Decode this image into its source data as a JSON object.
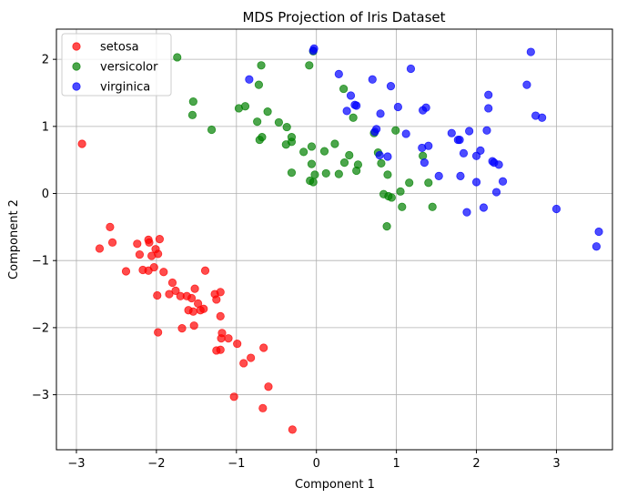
{
  "chart_data": {
    "type": "scatter",
    "title": "MDS Projection of Iris Dataset",
    "xlabel": "Component 1",
    "ylabel": "Component 2",
    "xlim": [
      -3.25,
      3.7
    ],
    "ylim": [
      -3.82,
      2.45
    ],
    "x_ticks": [
      -3,
      -2,
      -1,
      0,
      1,
      2,
      3
    ],
    "y_ticks": [
      -3,
      -2,
      -1,
      0,
      1,
      2
    ],
    "grid": true,
    "legend_position": "top-left",
    "series": [
      {
        "name": "setosa",
        "color": "#ff0000",
        "points": [
          [
            -2.93,
            0.74
          ],
          [
            -2.58,
            -0.5
          ],
          [
            -2.55,
            -0.73
          ],
          [
            -2.71,
            -0.82
          ],
          [
            -2.38,
            -1.16
          ],
          [
            -2.24,
            -0.75
          ],
          [
            -2.21,
            -0.91
          ],
          [
            -2.17,
            -1.14
          ],
          [
            -2.1,
            -0.69
          ],
          [
            -2.09,
            -0.73
          ],
          [
            -2.06,
            -0.93
          ],
          [
            -2.01,
            -0.83
          ],
          [
            -1.98,
            -0.9
          ],
          [
            -1.96,
            -0.68
          ],
          [
            -2.1,
            -1.15
          ],
          [
            -2.03,
            -1.1
          ],
          [
            -1.99,
            -1.52
          ],
          [
            -1.91,
            -1.17
          ],
          [
            -1.8,
            -1.33
          ],
          [
            -1.84,
            -1.5
          ],
          [
            -1.76,
            -1.45
          ],
          [
            -1.7,
            -1.53
          ],
          [
            -1.62,
            -1.53
          ],
          [
            -1.56,
            -1.56
          ],
          [
            -1.52,
            -1.42
          ],
          [
            -1.48,
            -1.64
          ],
          [
            -1.45,
            -1.74
          ],
          [
            -1.41,
            -1.72
          ],
          [
            -1.39,
            -1.15
          ],
          [
            -1.6,
            -1.74
          ],
          [
            -1.54,
            -1.76
          ],
          [
            -1.53,
            -1.97
          ],
          [
            -1.68,
            -2.01
          ],
          [
            -1.98,
            -2.07
          ],
          [
            -1.27,
            -1.5
          ],
          [
            -1.25,
            -1.58
          ],
          [
            -1.2,
            -1.47
          ],
          [
            -1.2,
            -1.83
          ],
          [
            -1.18,
            -2.08
          ],
          [
            -1.19,
            -2.16
          ],
          [
            -1.1,
            -2.16
          ],
          [
            -1.25,
            -2.34
          ],
          [
            -1.2,
            -2.33
          ],
          [
            -0.99,
            -2.24
          ],
          [
            -0.66,
            -2.3
          ],
          [
            -0.91,
            -2.53
          ],
          [
            -0.82,
            -2.45
          ],
          [
            -0.6,
            -2.88
          ],
          [
            -1.03,
            -3.03
          ],
          [
            -0.67,
            -3.2
          ],
          [
            -0.3,
            -3.52
          ]
        ]
      },
      {
        "name": "versicolor",
        "color": "#008000",
        "points": [
          [
            -1.74,
            2.03
          ],
          [
            -1.54,
            1.37
          ],
          [
            -1.55,
            1.17
          ],
          [
            -1.31,
            0.95
          ],
          [
            -0.97,
            1.27
          ],
          [
            -0.89,
            1.3
          ],
          [
            -0.74,
            1.07
          ],
          [
            -0.72,
            1.62
          ],
          [
            -0.69,
            1.91
          ],
          [
            -0.61,
            1.22
          ],
          [
            -0.71,
            0.8
          ],
          [
            -0.68,
            0.84
          ],
          [
            -0.47,
            1.06
          ],
          [
            -0.37,
            0.99
          ],
          [
            -0.31,
            0.84
          ],
          [
            -0.31,
            0.77
          ],
          [
            -0.31,
            0.31
          ],
          [
            -0.38,
            0.73
          ],
          [
            -0.16,
            0.62
          ],
          [
            -0.06,
            0.7
          ],
          [
            -0.06,
            0.44
          ],
          [
            -0.02,
            0.28
          ],
          [
            -0.08,
            0.19
          ],
          [
            -0.04,
            0.17
          ],
          [
            -0.09,
            1.91
          ],
          [
            -0.04,
            2.12
          ],
          [
            0.12,
            0.3
          ],
          [
            0.1,
            0.63
          ],
          [
            0.23,
            0.74
          ],
          [
            0.28,
            0.29
          ],
          [
            0.35,
            0.46
          ],
          [
            0.34,
            1.56
          ],
          [
            0.41,
            0.57
          ],
          [
            0.46,
            1.13
          ],
          [
            0.52,
            0.43
          ],
          [
            0.5,
            0.34
          ],
          [
            0.72,
            0.9
          ],
          [
            0.77,
            0.61
          ],
          [
            0.81,
            0.45
          ],
          [
            0.84,
            -0.01
          ],
          [
            0.89,
            0.28
          ],
          [
            0.9,
            -0.04
          ],
          [
            0.94,
            -0.06
          ],
          [
            0.88,
            -0.49
          ],
          [
            0.99,
            0.94
          ],
          [
            1.05,
            0.03
          ],
          [
            1.07,
            -0.2
          ],
          [
            1.16,
            0.16
          ],
          [
            1.33,
            0.56
          ],
          [
            1.4,
            0.16
          ],
          [
            1.45,
            -0.2
          ]
        ]
      },
      {
        "name": "virginica",
        "color": "#0000ff",
        "points": [
          [
            -0.04,
            2.13
          ],
          [
            -0.03,
            2.16
          ],
          [
            -0.84,
            1.7
          ],
          [
            0.28,
            1.78
          ],
          [
            0.38,
            1.23
          ],
          [
            0.43,
            1.46
          ],
          [
            0.48,
            1.32
          ],
          [
            0.5,
            1.31
          ],
          [
            0.7,
            1.7
          ],
          [
            0.8,
            1.19
          ],
          [
            0.73,
            0.92
          ],
          [
            0.75,
            0.96
          ],
          [
            0.79,
            0.57
          ],
          [
            0.89,
            0.55
          ],
          [
            0.93,
            1.6
          ],
          [
            1.02,
            1.29
          ],
          [
            1.12,
            0.89
          ],
          [
            1.18,
            1.86
          ],
          [
            1.33,
            1.24
          ],
          [
            1.37,
            1.28
          ],
          [
            1.32,
            0.68
          ],
          [
            1.35,
            0.46
          ],
          [
            1.4,
            0.71
          ],
          [
            1.53,
            0.26
          ],
          [
            1.69,
            0.9
          ],
          [
            1.77,
            0.8
          ],
          [
            1.79,
            0.8
          ],
          [
            1.84,
            0.6
          ],
          [
            1.91,
            0.93
          ],
          [
            1.8,
            0.26
          ],
          [
            1.88,
            -0.28
          ],
          [
            2.0,
            0.17
          ],
          [
            2.0,
            0.56
          ],
          [
            2.05,
            0.64
          ],
          [
            2.09,
            -0.21
          ],
          [
            2.13,
            0.94
          ],
          [
            2.15,
            1.27
          ],
          [
            2.15,
            1.47
          ],
          [
            2.2,
            0.48
          ],
          [
            2.22,
            0.46
          ],
          [
            2.25,
            0.02
          ],
          [
            2.28,
            0.43
          ],
          [
            2.33,
            0.18
          ],
          [
            2.63,
            1.62
          ],
          [
            2.68,
            2.11
          ],
          [
            2.74,
            1.16
          ],
          [
            2.82,
            1.13
          ],
          [
            3.0,
            -0.23
          ],
          [
            3.5,
            -0.79
          ],
          [
            3.53,
            -0.57
          ]
        ]
      }
    ]
  }
}
